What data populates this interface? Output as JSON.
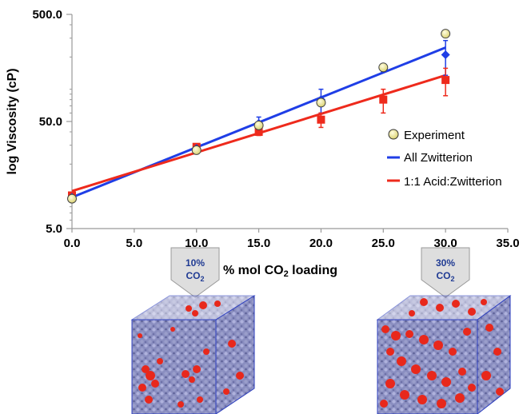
{
  "chart_data": {
    "type": "line",
    "title": "",
    "xlabel": "% mol CO₂ loading",
    "ylabel": "log Viscosity (cP)",
    "xlim": [
      0,
      35
    ],
    "ylim": [
      5,
      500
    ],
    "y_scale": "log",
    "x_ticks": [
      "0.0",
      "5.0",
      "10.0",
      "15.0",
      "20.0",
      "25.0",
      "30.0",
      "35.0"
    ],
    "y_ticks": [
      {
        "value": 5,
        "label": "5.0"
      },
      {
        "value": 50,
        "label": "50.0"
      },
      {
        "value": 500,
        "label": "500.0"
      }
    ],
    "grid": false,
    "legend_position": "right",
    "series": [
      {
        "name": "Experiment",
        "kind": "scatter",
        "color": "#f0e68c",
        "points": [
          {
            "x": 0,
            "y": 9.5
          },
          {
            "x": 10,
            "y": 27
          },
          {
            "x": 15,
            "y": 46
          },
          {
            "x": 20,
            "y": 75
          },
          {
            "x": 25,
            "y": 160
          },
          {
            "x": 30,
            "y": 330
          }
        ]
      },
      {
        "name": "All Zwitterion",
        "kind": "line",
        "color": "#1f3ee6",
        "points": [
          {
            "x": 0,
            "y": 9.8,
            "err": 0
          },
          {
            "x": 10,
            "y": 28,
            "err": 1.5
          },
          {
            "x": 15,
            "y": 48,
            "err": 7
          },
          {
            "x": 20,
            "y": 80,
            "err": 20
          },
          {
            "x": 25,
            "y": 155,
            "err": 10
          },
          {
            "x": 30,
            "y": 210,
            "err": 75
          }
        ],
        "fit": [
          [
            0,
            9.8
          ],
          [
            30,
            245
          ]
        ]
      },
      {
        "name": "1:1 Acid:Zwitterion",
        "kind": "line",
        "color": "#ee2a1c",
        "points": [
          {
            "x": 0,
            "y": 10.2,
            "err": 0
          },
          {
            "x": 10,
            "y": 29,
            "err": 2
          },
          {
            "x": 15,
            "y": 40,
            "err": 3
          },
          {
            "x": 20,
            "y": 52,
            "err": 8
          },
          {
            "x": 25,
            "y": 80,
            "err": 20
          },
          {
            "x": 30,
            "y": 122,
            "err": 35
          }
        ],
        "fit": [
          [
            0,
            11.2
          ],
          [
            30,
            135
          ]
        ]
      }
    ],
    "annotations": [
      {
        "pct": "10%",
        "species": "CO",
        "sub": "2",
        "x": 10
      },
      {
        "pct": "30%",
        "species": "CO",
        "sub": "2",
        "x": 30
      }
    ]
  }
}
